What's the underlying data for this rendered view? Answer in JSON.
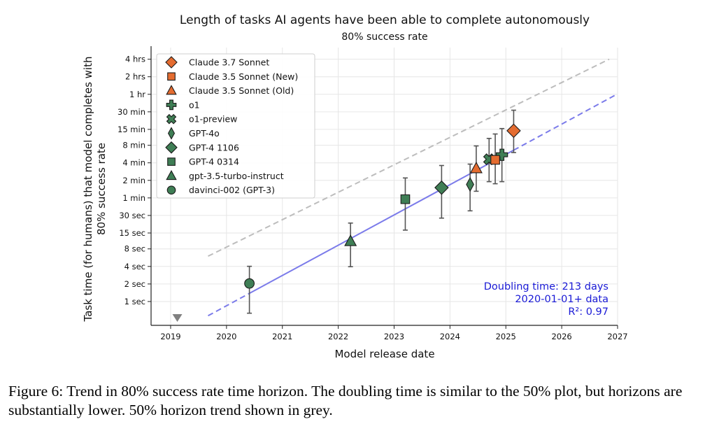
{
  "caption": "Figure 6: Trend in 80% success rate time horizon. The doubling time is similar to the 50% plot, but horizons are substantially lower. 50% horizon trend shown in grey.",
  "chart_data": {
    "type": "scatter",
    "title": "Length of tasks AI agents have been able to complete autonomously",
    "subtitle": "80% success rate",
    "xlabel": "Model release date",
    "ylabel_line1": "Task time (for humans) that model completes with",
    "ylabel_line2": "80% success rate",
    "y_scale": "log",
    "y_unit": "minutes",
    "xlim": [
      2018.65,
      2027.0
    ],
    "ylim_minutes": [
      0.0065,
      380
    ],
    "grid": true,
    "x_ticks": [
      {
        "value": 2019,
        "label": "2019"
      },
      {
        "value": 2020,
        "label": "2020"
      },
      {
        "value": 2021,
        "label": "2021"
      },
      {
        "value": 2022,
        "label": "2022"
      },
      {
        "value": 2023,
        "label": "2023"
      },
      {
        "value": 2024,
        "label": "2024"
      },
      {
        "value": 2025,
        "label": "2025"
      },
      {
        "value": 2026,
        "label": "2026"
      },
      {
        "value": 2027,
        "label": "2027"
      }
    ],
    "y_ticks": [
      {
        "value": 0.016667,
        "label": "1 sec"
      },
      {
        "value": 0.033333,
        "label": "2 sec"
      },
      {
        "value": 0.066667,
        "label": "4 sec"
      },
      {
        "value": 0.133333,
        "label": "8 sec"
      },
      {
        "value": 0.25,
        "label": "15 sec"
      },
      {
        "value": 0.5,
        "label": "30 sec"
      },
      {
        "value": 1,
        "label": "1 min"
      },
      {
        "value": 2,
        "label": "2 min"
      },
      {
        "value": 4,
        "label": "4 min"
      },
      {
        "value": 8,
        "label": "8 min"
      },
      {
        "value": 15,
        "label": "15 min"
      },
      {
        "value": 30,
        "label": "30 min"
      },
      {
        "value": 60,
        "label": "1 hr"
      },
      {
        "value": 120,
        "label": "2 hrs"
      },
      {
        "value": 240,
        "label": "4 hrs"
      }
    ],
    "legend_position": "top-left",
    "series": [
      {
        "name": "Claude 3.7 Sonnet",
        "marker": "diamond",
        "color": "#e46c30",
        "x": 2025.14,
        "y": 14.2,
        "err": [
          6.0,
          32.0
        ]
      },
      {
        "name": "Claude 3.5 Sonnet (New)",
        "marker": "square",
        "color": "#e46c30",
        "x": 2024.81,
        "y": 4.5,
        "err": [
          1.75,
          12.5
        ]
      },
      {
        "name": "Claude 3.5 Sonnet (Old)",
        "marker": "triangle",
        "color": "#e46c30",
        "x": 2024.47,
        "y": 3.2,
        "err": [
          1.3,
          7.8
        ]
      },
      {
        "name": "o1",
        "marker": "plus",
        "color": "#3f7e55",
        "x": 2024.93,
        "y": 5.5,
        "err": [
          1.9,
          15.5
        ]
      },
      {
        "name": "o1-preview",
        "marker": "x",
        "color": "#3f7e55",
        "x": 2024.7,
        "y": 4.6,
        "err": [
          1.9,
          10.5
        ]
      },
      {
        "name": "GPT-4o",
        "marker": "thin-diamond",
        "color": "#3f7e55",
        "x": 2024.36,
        "y": 1.7,
        "err": [
          0.6,
          3.8
        ]
      },
      {
        "name": "GPT-4 1106",
        "marker": "diamond",
        "color": "#3f7e55",
        "x": 2023.85,
        "y": 1.5,
        "err": [
          0.45,
          3.6
        ]
      },
      {
        "name": "GPT-4 0314",
        "marker": "square",
        "color": "#3f7e55",
        "x": 2023.2,
        "y": 0.95,
        "err": [
          0.28,
          2.2
        ]
      },
      {
        "name": "gpt-3.5-turbo-instruct",
        "marker": "triangle",
        "color": "#3f7e55",
        "x": 2022.22,
        "y": 0.18,
        "err": [
          0.066,
          0.37
        ]
      },
      {
        "name": "davinci-002 (GPT-3)",
        "marker": "circle",
        "color": "#3f7e55",
        "x": 2020.41,
        "y": 0.034,
        "err": [
          0.0105,
          0.067
        ]
      }
    ],
    "below_range_marker": {
      "x": 2019.12,
      "color": "#808080"
    },
    "trend_80": {
      "color": "#7b7bea",
      "x": [
        2019.67,
        2027.0
      ],
      "y": [
        0.0095,
        61
      ],
      "solid_x": [
        2020.41,
        2025.14
      ]
    },
    "trend_50": {
      "color": "#bdbdbd",
      "x": [
        2019.67,
        2026.85
      ],
      "y": [
        0.1,
        240
      ]
    },
    "annotation": {
      "color": "#1a1ad6",
      "lines": [
        "Doubling time: 213 days",
        "2020-01-01+ data",
        "R²: 0.97"
      ]
    }
  }
}
